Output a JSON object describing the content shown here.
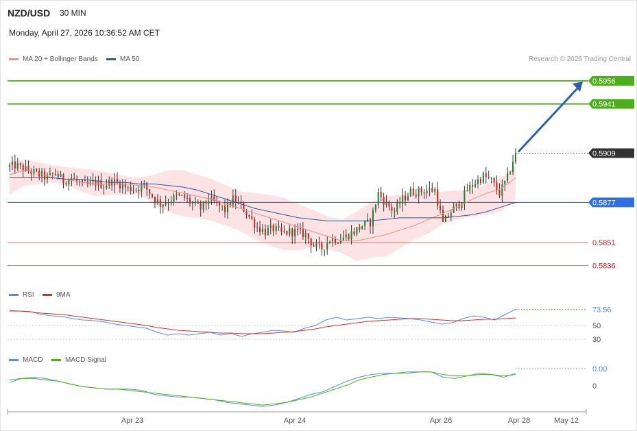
{
  "header": {
    "symbol": "NZD/USD",
    "timeframe": "30 MIN",
    "datetime": "Monday, April 27, 2026 10:36:52 AM CET",
    "credit": "Research © 2026 Trading Central"
  },
  "colors": {
    "bb": "#f28b8b",
    "band_fill": "#fde3e3",
    "ma50": "#2f5597",
    "bull": "#2e7d32",
    "bear": "#c62828",
    "target_line": "#4caf1a",
    "pivot_line": "#2f6fe0",
    "support_line": "#e57373",
    "rsi": "#5b8be0",
    "rsi_ma": "#d32f2f",
    "macd": "#5b8be0",
    "macd_signal": "#4caf1a",
    "arrow": "#2f5fa8"
  },
  "legend": {
    "ma20_label": "MA 20 + Bollinger Bands",
    "ma50_label": "MA 50",
    "rsi_label": "RSI",
    "rsi_ma_label": "9MA",
    "macd_label": "MACD",
    "macd_signal_label": "MACD Signal"
  },
  "chart_data": [
    {
      "type": "candlestick",
      "title": "NZD/USD 30 MIN",
      "ylim": [
        0.5826,
        0.5964
      ],
      "x_ticks": [
        "Apr 23",
        "Apr 24",
        "Apr 26",
        "Apr 28",
        "May 12"
      ],
      "last_price": 0.5909,
      "levels": [
        {
          "value": 0.5956,
          "label": "0.5956",
          "kind": "target"
        },
        {
          "value": 0.5941,
          "label": "0.5941",
          "kind": "target"
        },
        {
          "value": 0.5909,
          "label": "0.5909",
          "kind": "last"
        },
        {
          "value": 0.5877,
          "label": "0.5877",
          "kind": "pivot"
        },
        {
          "value": 0.5851,
          "label": "0.5851",
          "kind": "support"
        },
        {
          "value": 0.5836,
          "label": "0.5836",
          "kind": "support"
        }
      ],
      "anchors": [
        0.59,
        0.5901,
        0.5899,
        0.5897,
        0.5895,
        0.5893,
        0.5896,
        0.5891,
        0.5893,
        0.5889,
        0.5888,
        0.589,
        0.5888,
        0.5891,
        0.5889,
        0.5886,
        0.5886,
        0.5888,
        0.5881,
        0.5876,
        0.5878,
        0.5881,
        0.588,
        0.5876,
        0.5873,
        0.5879,
        0.5876,
        0.5872,
        0.5879,
        0.5875,
        0.5868,
        0.5861,
        0.5858,
        0.586,
        0.5857,
        0.5858,
        0.5858,
        0.5856,
        0.5849,
        0.5847,
        0.5853,
        0.5853,
        0.5855,
        0.5858,
        0.5862,
        0.5864,
        0.5883,
        0.5876,
        0.5871,
        0.5879,
        0.5884,
        0.5884,
        0.5885,
        0.5885,
        0.5863,
        0.5871,
        0.5876,
        0.5885,
        0.589,
        0.5894,
        0.5891,
        0.5883,
        0.5893,
        0.591
      ],
      "series": [
        {
          "name": "MA 20 + Bollinger Bands",
          "values": [
            0.5895,
            0.5898,
            0.5896,
            0.5893,
            0.5892,
            0.589,
            0.5889,
            0.5889,
            0.5889,
            0.5888,
            0.5887,
            0.5885,
            0.5883,
            0.5881,
            0.5879,
            0.5876,
            0.5873,
            0.587,
            0.5867,
            0.5864,
            0.5861,
            0.5858,
            0.5855,
            0.5852,
            0.5852,
            0.5854,
            0.5856,
            0.5859,
            0.5862,
            0.5866,
            0.587,
            0.5874,
            0.5879,
            0.5883,
            0.5886,
            0.5893
          ]
        },
        {
          "name": "Bollinger upper",
          "values": [
            0.5903,
            0.5905,
            0.5903,
            0.5901,
            0.59,
            0.5899,
            0.5898,
            0.5896,
            0.5894,
            0.5893,
            0.5895,
            0.5898,
            0.5898,
            0.5895,
            0.5892,
            0.5888,
            0.5884,
            0.5883,
            0.5882,
            0.588,
            0.5876,
            0.5872,
            0.5868,
            0.5866,
            0.5871,
            0.5877,
            0.5881,
            0.5882,
            0.5883,
            0.5884,
            0.5884,
            0.5885,
            0.5885,
            0.5889,
            0.5893,
            0.5901
          ]
        },
        {
          "name": "Bollinger lower",
          "values": [
            0.5882,
            0.5888,
            0.5889,
            0.589,
            0.5888,
            0.5884,
            0.5881,
            0.5882,
            0.5882,
            0.5882,
            0.5876,
            0.5871,
            0.5868,
            0.5867,
            0.5865,
            0.5862,
            0.5858,
            0.5853,
            0.5849,
            0.5846,
            0.5846,
            0.5848,
            0.5847,
            0.5844,
            0.5839,
            0.5841,
            0.5842,
            0.5847,
            0.5853,
            0.5857,
            0.5863,
            0.5866,
            0.5868,
            0.5869,
            0.5871,
            0.5879
          ]
        },
        {
          "name": "MA 50",
          "values": [
            0.5893,
            0.5893,
            0.5893,
            0.5893,
            0.5892,
            0.5892,
            0.5891,
            0.589,
            0.589,
            0.5889,
            0.5889,
            0.5888,
            0.5887,
            0.5885,
            0.5882,
            0.5879,
            0.5876,
            0.5873,
            0.5871,
            0.5869,
            0.5867,
            0.5866,
            0.5865,
            0.5865,
            0.5865,
            0.5865,
            0.5866,
            0.5867,
            0.5867,
            0.5867,
            0.5867,
            0.5868,
            0.5869,
            0.5871,
            0.5874,
            0.5877
          ]
        }
      ]
    },
    {
      "type": "line",
      "title": "RSI",
      "ylim": [
        20,
        85
      ],
      "y_ticks": [
        30,
        50
      ],
      "last_value_label": "73.56",
      "series": [
        {
          "name": "RSI",
          "values": [
            72,
            71,
            70,
            66,
            64,
            63,
            60,
            58,
            57,
            55,
            52,
            50,
            48,
            46,
            40,
            36,
            38,
            36,
            38,
            40,
            36,
            38,
            34,
            38,
            40,
            43,
            42,
            40,
            46,
            50,
            58,
            62,
            58,
            60,
            62,
            60,
            62,
            61,
            60,
            58,
            55,
            52,
            54,
            60,
            64,
            62,
            58,
            66,
            73.56
          ]
        },
        {
          "name": "9MA",
          "values": [
            71,
            71,
            70,
            68,
            67,
            66,
            64,
            62,
            60,
            58,
            56,
            54,
            52,
            50,
            47,
            45,
            43,
            42,
            41,
            40,
            39,
            39,
            38,
            38,
            38,
            39,
            40,
            41,
            43,
            45,
            48,
            50,
            52,
            54,
            56,
            57,
            58,
            59,
            60,
            60,
            59,
            58,
            57,
            57,
            58,
            59,
            59,
            60,
            61
          ]
        }
      ]
    },
    {
      "type": "line",
      "title": "MACD",
      "y_ticks": [
        0
      ],
      "last_value_label": "0.00",
      "series": [
        {
          "name": "MACD",
          "values": [
            0.0,
            0.0003,
            0.0004,
            0.0003,
            0.0001,
            -0.0001,
            -0.0003,
            -0.0004,
            -0.0005,
            -0.0005,
            -0.0005,
            -0.0006,
            -0.0009,
            -0.001,
            -0.0011,
            -0.0011,
            -0.0012,
            -0.0013,
            -0.0015,
            -0.0016,
            -0.0017,
            -0.0018,
            -0.0017,
            -0.0015,
            -0.0012,
            -0.0009,
            -0.0007,
            -0.0003,
            0.0001,
            0.0004,
            0.0006,
            0.0007,
            0.0007,
            0.0008,
            0.0008,
            0.0008,
            0.0004,
            0.0003,
            0.0005,
            0.0007,
            0.0006,
            0.0004,
            0.0007
          ]
        },
        {
          "name": "MACD Signal",
          "values": [
            0.0002,
            0.0003,
            0.0003,
            0.0002,
            0.0001,
            -0.0001,
            -0.0003,
            -0.0004,
            -0.0005,
            -0.0005,
            -0.0006,
            -0.0007,
            -0.0008,
            -0.0009,
            -0.001,
            -0.0011,
            -0.0012,
            -0.0013,
            -0.0014,
            -0.0015,
            -0.0016,
            -0.0017,
            -0.0016,
            -0.0015,
            -0.0013,
            -0.0011,
            -0.0008,
            -0.0005,
            -0.0002,
            0.0002,
            0.0004,
            0.0006,
            0.0007,
            0.0007,
            0.0008,
            0.0008,
            0.0006,
            0.0005,
            0.0005,
            0.0006,
            0.0006,
            0.0005,
            0.0006
          ]
        }
      ]
    }
  ]
}
